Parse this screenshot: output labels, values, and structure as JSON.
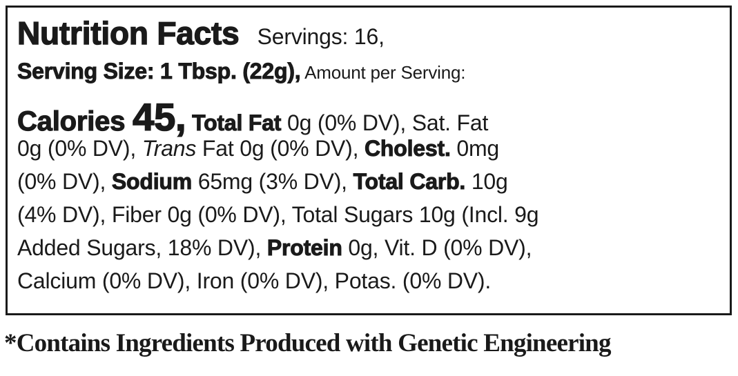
{
  "label": {
    "lines": [
      [
        {
          "t": "Nutrition Facts",
          "s": "xl"
        },
        {
          "t": "   Servings: 16,",
          "s": "n"
        }
      ],
      [
        {
          "t": "Serving Size: 1 Tbsp. (22g),",
          "s": "b"
        },
        {
          "t": " Amount per Serving:",
          "s": "n s"
        }
      ],
      [
        {
          "t": "Calories ",
          "s": "l"
        },
        {
          "t": "45,",
          "s": "xxl"
        },
        {
          "t": " Total Fat",
          "s": "b"
        },
        {
          "t": " 0g (0% DV), Sat. Fat",
          "s": "n"
        }
      ],
      [
        {
          "t": "0g (0% DV), ",
          "s": "n"
        },
        {
          "t": "Trans",
          "s": "i"
        },
        {
          "t": " Fat 0g (0% DV), ",
          "s": "n"
        },
        {
          "t": "Cholest.",
          "s": "b"
        },
        {
          "t": " 0mg",
          "s": "n"
        }
      ],
      [
        {
          "t": "(0% DV), ",
          "s": "n"
        },
        {
          "t": "Sodium",
          "s": "b"
        },
        {
          "t": " 65mg (3% DV), ",
          "s": "n"
        },
        {
          "t": "Total Carb.",
          "s": "b"
        },
        {
          "t": " 10g",
          "s": "n"
        }
      ],
      [
        {
          "t": "(4% DV), Fiber 0g (0% DV), Total Sugars 10g (Incl. 9g",
          "s": "n"
        }
      ],
      [
        {
          "t": "Added Sugars, 18% DV), ",
          "s": "n"
        },
        {
          "t": "Protein",
          "s": "b"
        },
        {
          "t": " 0g, Vit. D (0% DV),",
          "s": "n"
        }
      ],
      [
        {
          "t": "Calcium (0% DV), Iron (0% DV), Potas. (0% DV).",
          "s": "n"
        }
      ]
    ]
  },
  "footer": "*Contains Ingredients Produced with Genetic Engineering"
}
